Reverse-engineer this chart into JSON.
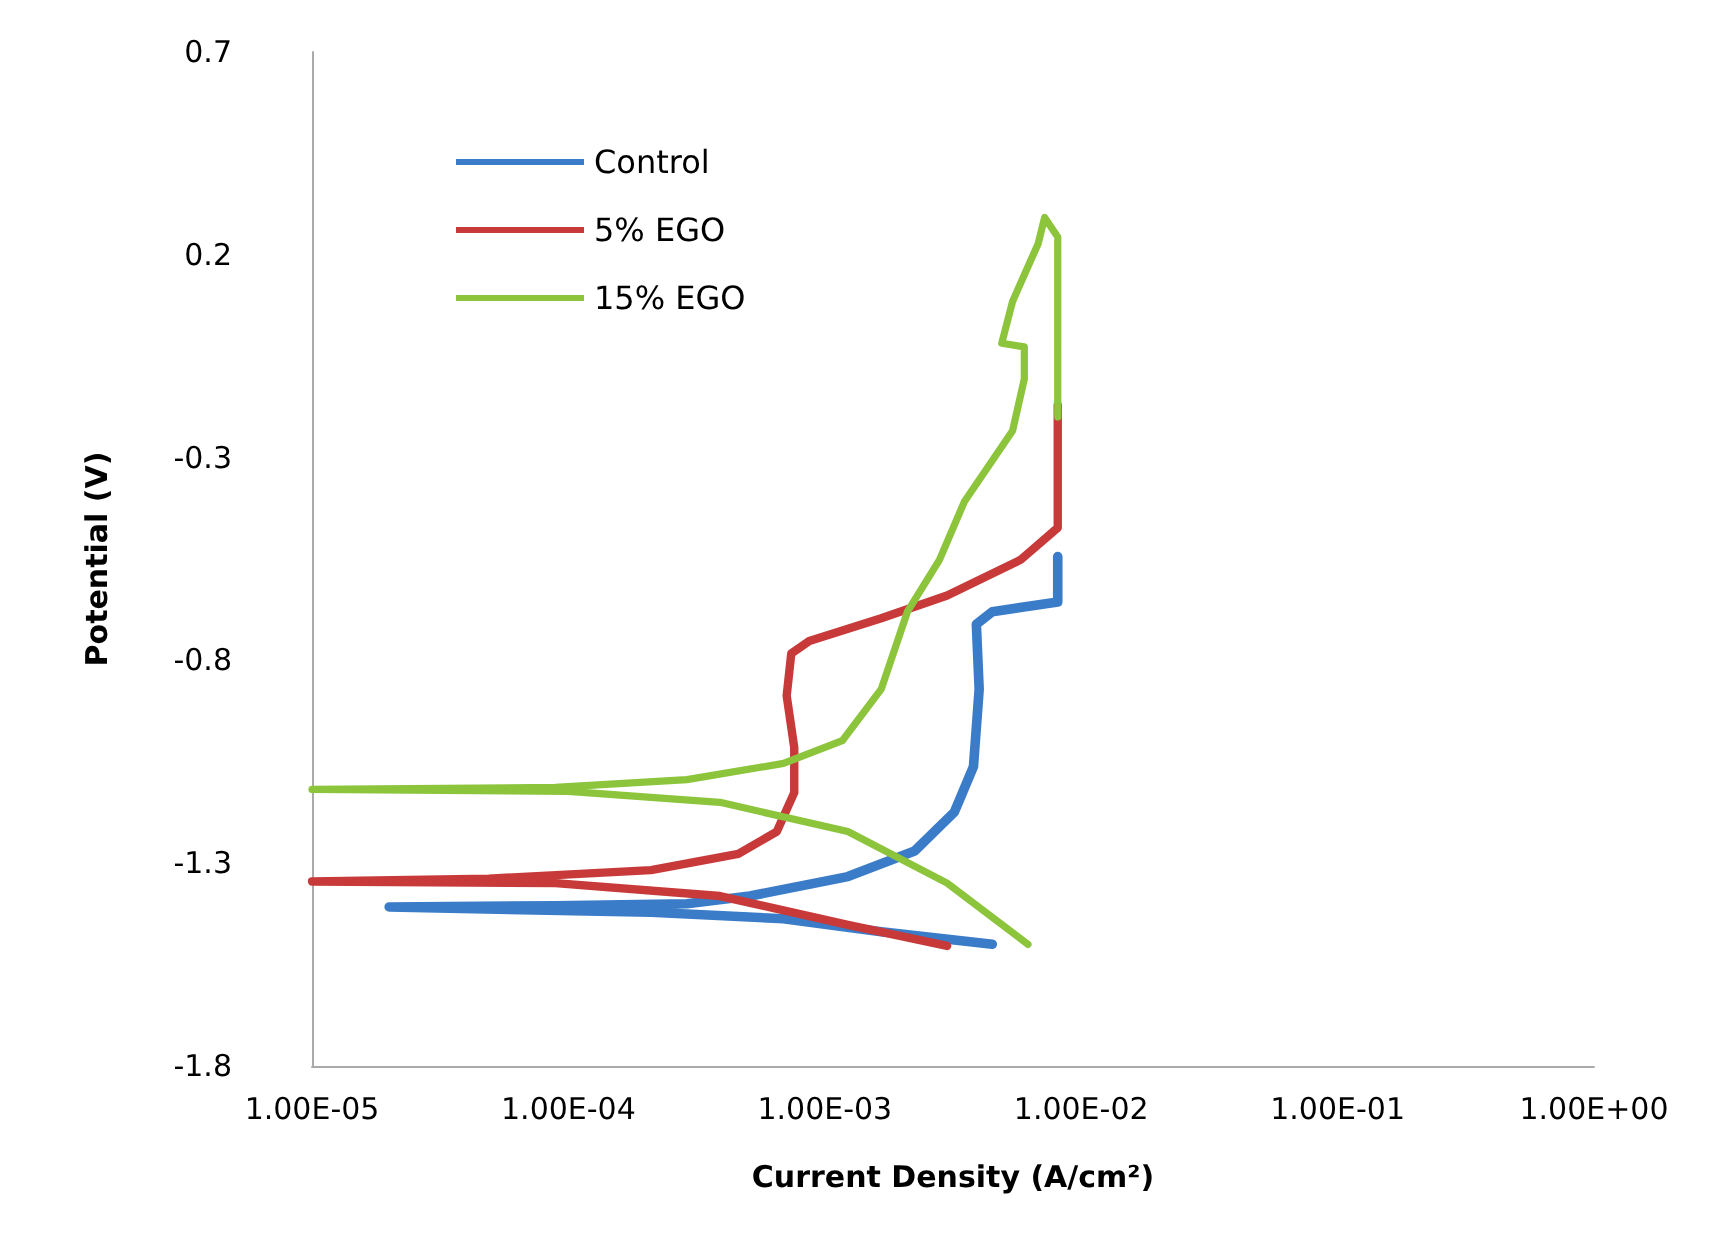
{
  "chart_data": {
    "type": "line",
    "xlabel": "Current Density (A/cm²)",
    "ylabel": "Potential (V)",
    "log": "x",
    "xlim": [
      1e-05,
      1
    ],
    "xticks": [
      {
        "value": 1e-05,
        "label": "1.00E-05"
      },
      {
        "value": 0.0001,
        "label": "1.00E-04"
      },
      {
        "value": 0.001,
        "label": "1.00E-03"
      },
      {
        "value": 0.01,
        "label": "1.00E-02"
      },
      {
        "value": 0.1,
        "label": "1.00E-01"
      },
      {
        "value": 1,
        "label": "1.00E+00"
      }
    ],
    "ylim": [
      -1.8,
      0.7
    ],
    "yticks": [
      -1.8,
      -1.3,
      -0.8,
      -0.3,
      0.2,
      0.7
    ],
    "grid": false,
    "legend": "top left",
    "marker": "none",
    "line_style": "solid",
    "series": [
      {
        "name": "Control",
        "color": "#3a7cc8",
        "x": [
          0.0045,
          0.00166,
          0.00069,
          0.00021,
          2e-05,
          8.9e-05,
          0.00029,
          0.00051,
          0.00123,
          0.00224,
          0.0032,
          0.0038,
          0.004,
          0.0039,
          0.0045,
          0.0081,
          0.0081
        ],
        "values": [
          -1.5,
          -1.469,
          -1.437,
          -1.421,
          -1.408,
          -1.405,
          -1.4,
          -1.381,
          -1.333,
          -1.27,
          -1.174,
          -1.062,
          -0.871,
          -0.711,
          -0.68,
          -0.656,
          -0.544
        ]
      },
      {
        "name": "5% EGO",
        "color": "#c83a3a",
        "x": [
          0.003,
          0.00123,
          0.00039,
          8.9e-05,
          1e-05,
          4.9e-05,
          0.00021,
          0.00046,
          0.00065,
          0.00076,
          0.00076,
          0.00071,
          0.00074,
          0.00087,
          0.00166,
          0.003,
          0.0058,
          0.0081,
          0.0081,
          0.0081
        ],
        "values": [
          -1.504,
          -1.452,
          -1.381,
          -1.349,
          -1.345,
          -1.338,
          -1.317,
          -1.277,
          -1.222,
          -1.126,
          -1.015,
          -0.887,
          -0.783,
          -0.752,
          -0.696,
          -0.64,
          -0.552,
          -0.473,
          -0.266,
          -0.17
        ]
      },
      {
        "name": "15% EGO",
        "color": "#8cc43c",
        "x": [
          0.0062,
          0.003,
          0.00123,
          0.00039,
          0.0001,
          1e-05,
          8.9e-05,
          0.00029,
          0.00069,
          0.00117,
          0.00166,
          0.0021,
          0.0028,
          0.0035,
          0.0054,
          0.006,
          0.006,
          0.0049,
          0.0054,
          0.0068,
          0.0072,
          0.0081,
          0.0081
        ],
        "values": [
          -1.5,
          -1.349,
          -1.222,
          -1.15,
          -1.123,
          -1.118,
          -1.113,
          -1.094,
          -1.054,
          -0.998,
          -0.871,
          -0.68,
          -0.552,
          -0.409,
          -0.234,
          -0.106,
          -0.027,
          -0.018,
          0.085,
          0.228,
          0.292,
          0.244,
          -0.2
        ]
      }
    ]
  }
}
